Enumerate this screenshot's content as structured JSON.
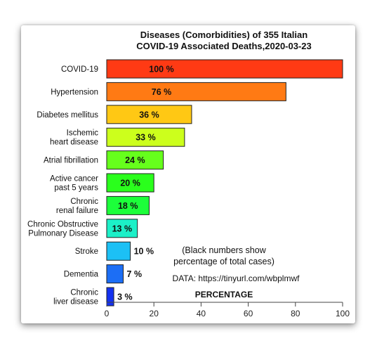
{
  "chart_data": {
    "type": "bar",
    "orientation": "horizontal",
    "title_lines": [
      "Diseases (Comorbidities) of 355 Italian",
      "COVID-19 Associated Deaths,2020-03-23"
    ],
    "xlabel": "PERCENTAGE",
    "ylabel": "",
    "xlim": [
      0,
      100
    ],
    "xticks": [
      0,
      20,
      40,
      60,
      80,
      100
    ],
    "grid": false,
    "categories": [
      [
        "COVID-19"
      ],
      [
        "Hypertension"
      ],
      [
        "Diabetes mellitus"
      ],
      [
        "Ischemic",
        "heart disease"
      ],
      [
        "Atrial fibrillation"
      ],
      [
        "Active cancer",
        "past 5 years"
      ],
      [
        "Chronic",
        "renal failure"
      ],
      [
        "Chronic Obstructive",
        "Pulmonary Disease"
      ],
      [
        "Stroke"
      ],
      [
        "Dementia"
      ],
      [
        "Chronic",
        "liver disease"
      ]
    ],
    "values": [
      100,
      76,
      36,
      33,
      24,
      20,
      18,
      13,
      10,
      7,
      3
    ],
    "value_labels": [
      "100 %",
      "76 %",
      "36 %",
      "33 %",
      "24 %",
      "20 %",
      "18 %",
      "13 %",
      "10 %",
      "7 %",
      "3 %"
    ],
    "colors": [
      "#ff3a14",
      "#ff7a14",
      "#ffc814",
      "#ccff1c",
      "#66ff1c",
      "#2aff1c",
      "#1cff3a",
      "#1cf0c8",
      "#1cc0f5",
      "#1c6ef5",
      "#1432f0"
    ],
    "annotation_lines": [
      "(Black numbers show",
      "percentage of total cases)"
    ],
    "source": "DATA:  https://tinyurl.com/wbplmwf"
  }
}
